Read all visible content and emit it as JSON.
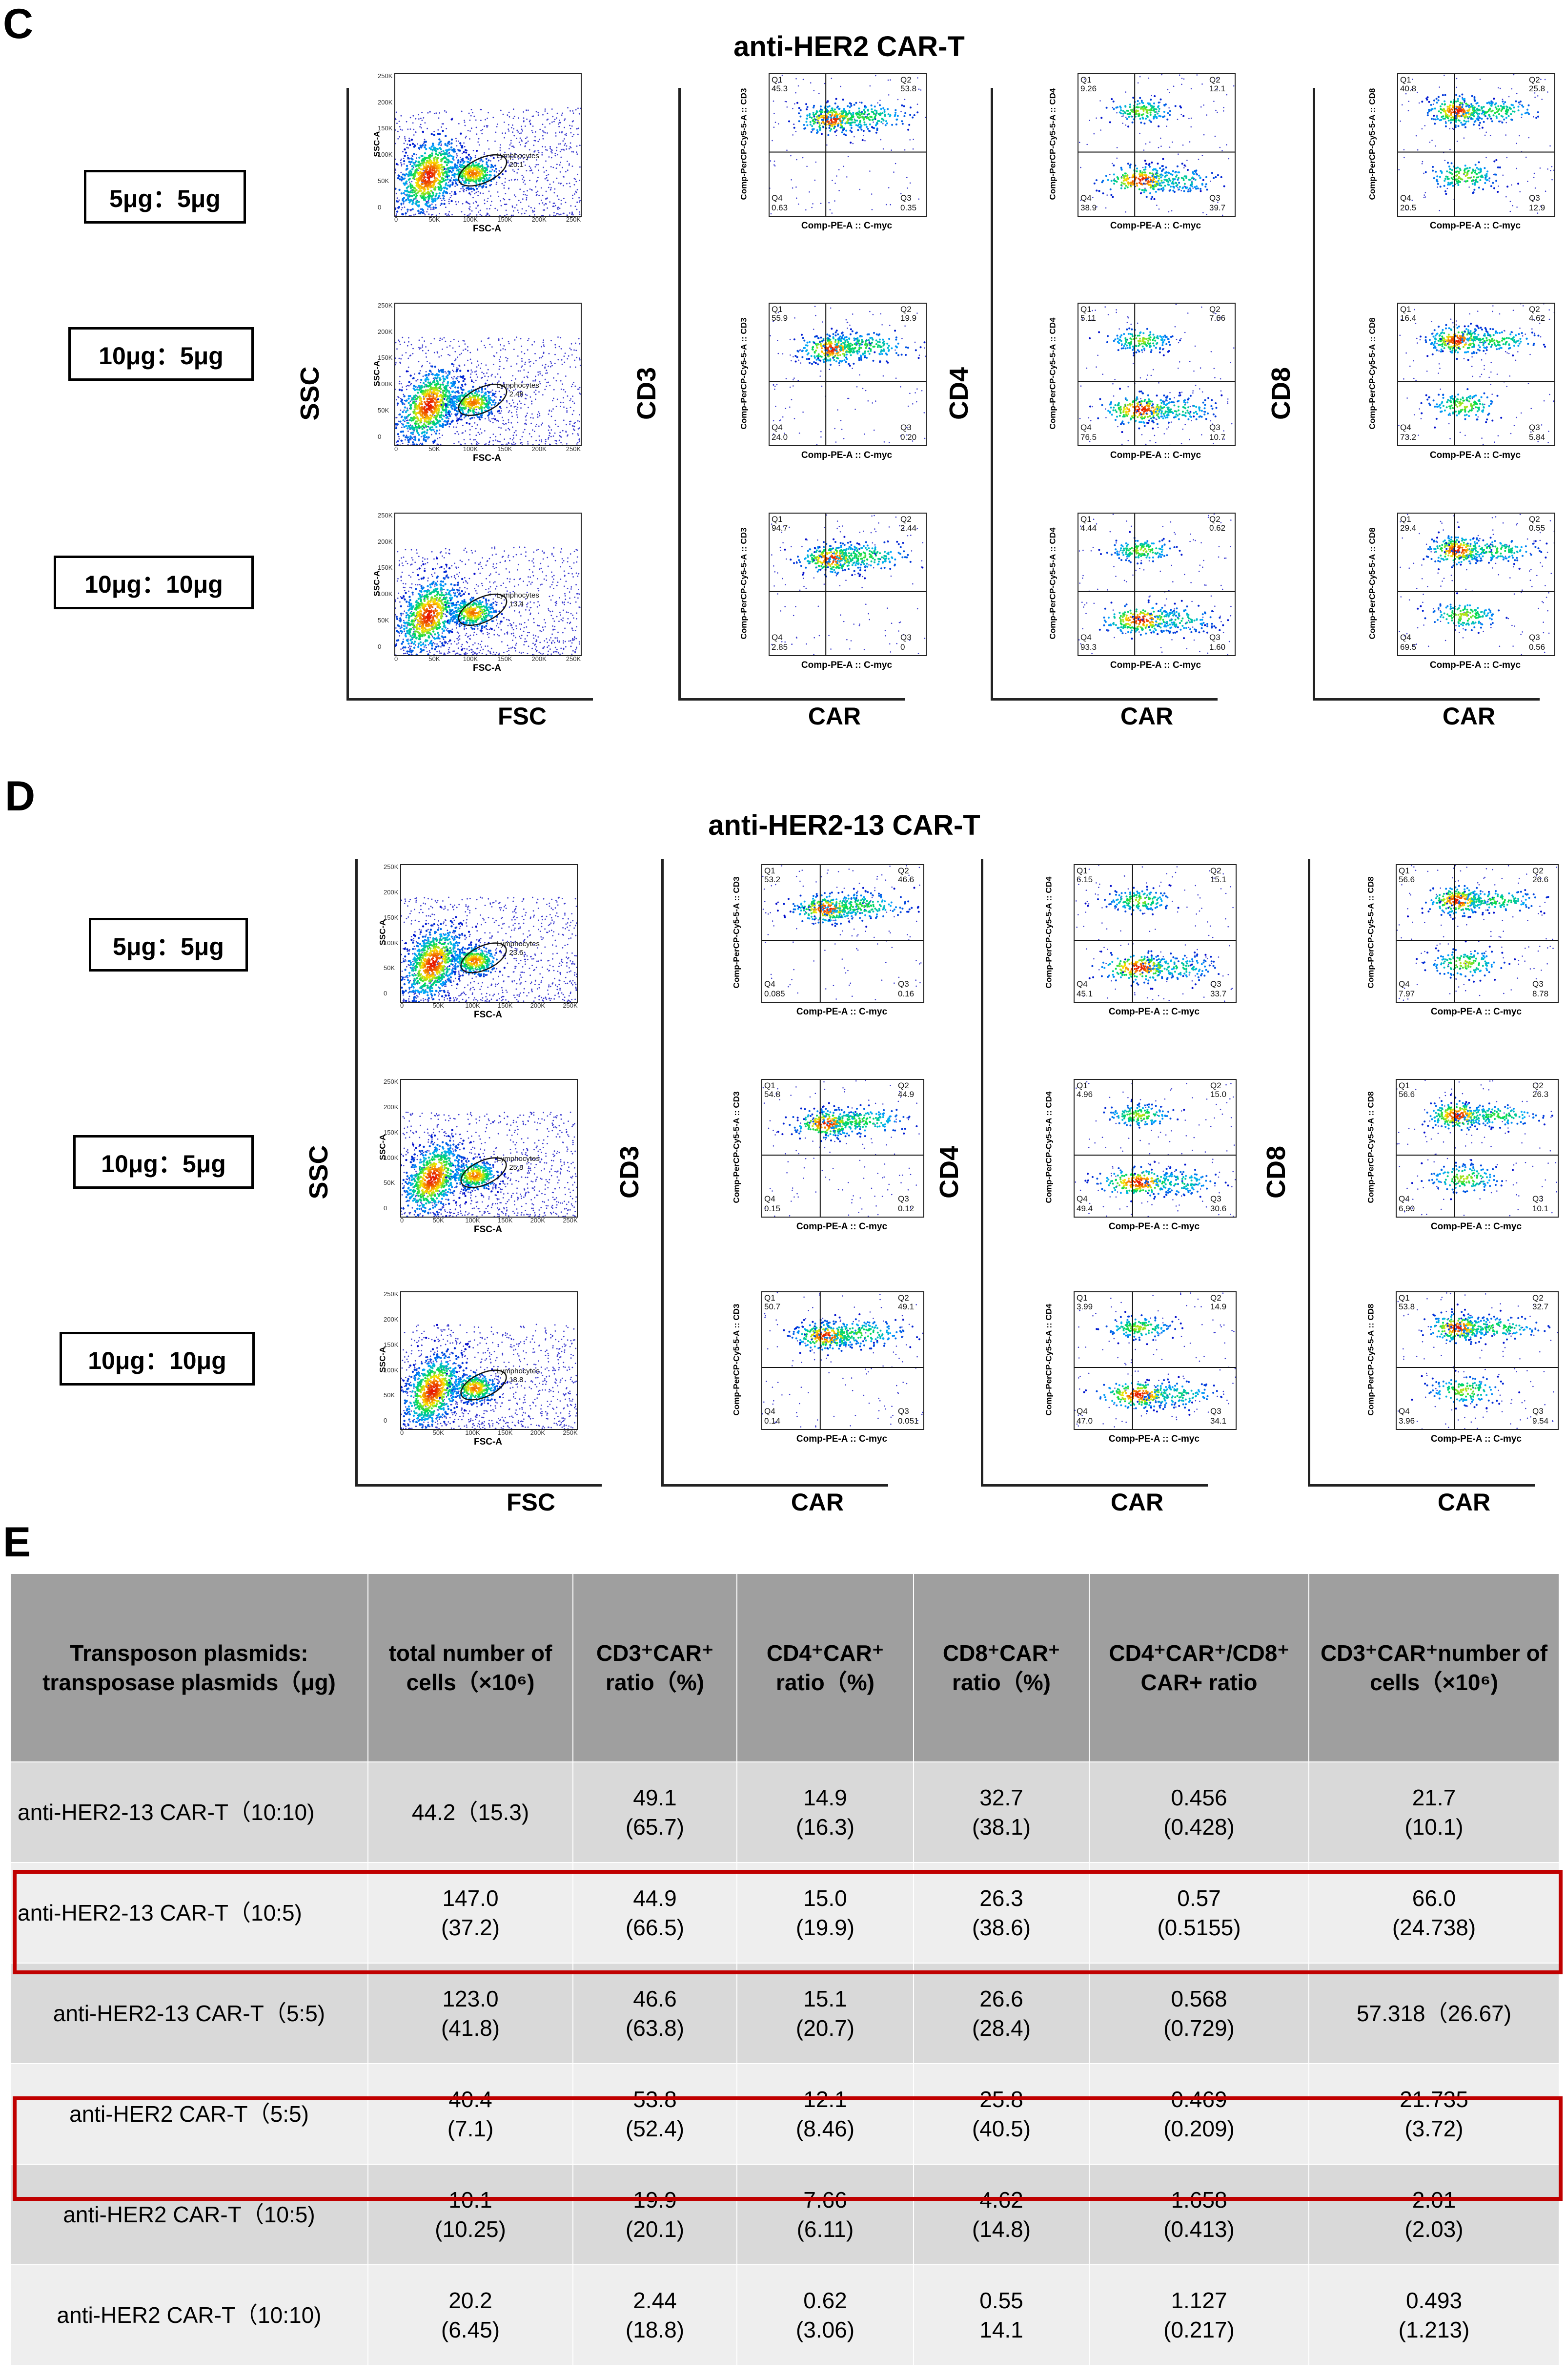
{
  "panels": {
    "c": {
      "letter": "C",
      "title": "anti-HER2 CAR-T",
      "ratios": [
        "5μg：5μg",
        "10μg：5μg",
        "10μg：10μg"
      ],
      "scatter": {
        "big_y": "SSC",
        "big_x": "FSC",
        "x_small": "FSC-A",
        "y_small": "SSC-A",
        "gate_label": "Lymphocytes",
        "gate_values": [
          "20.1",
          "2.48",
          "13.4"
        ],
        "y_ticks": [
          "250K",
          "200K",
          "150K",
          "100K",
          "50K",
          "0"
        ],
        "x_ticks": [
          "0",
          "50K",
          "100K",
          "150K",
          "200K",
          "250K"
        ]
      },
      "markers": [
        {
          "name": "CD3",
          "y_small": "Comp-PerCP-Cy5-5-A :: CD3",
          "x_small": "Comp-PE-A :: C-myc",
          "big_x": "CAR",
          "quads": [
            {
              "q1": "45.3",
              "q2": "53.8",
              "q3": "0.35",
              "q4": "0.63"
            },
            {
              "q1": "55.9",
              "q2": "19.9",
              "q3": "0.20",
              "q4": "24.0"
            },
            {
              "q1": "94.7",
              "q2": "2.44",
              "q3": "0",
              "q4": "2.85"
            }
          ]
        },
        {
          "name": "CD4",
          "y_small": "Comp-PerCP-Cy5-5-A :: CD4",
          "x_small": "Comp-PE-A :: C-myc",
          "big_x": "CAR",
          "quads": [
            {
              "q1": "9.26",
              "q2": "12.1",
              "q3": "39.7",
              "q4": "38.9"
            },
            {
              "q1": "5.11",
              "q2": "7.66",
              "q3": "10.7",
              "q4": "76.5"
            },
            {
              "q1": "4.44",
              "q2": "0.62",
              "q3": "1.60",
              "q4": "93.3"
            }
          ]
        },
        {
          "name": "CD8",
          "y_small": "Comp-PerCP-Cy5-5-A :: CD8",
          "x_small": "Comp-PE-A :: C-myc",
          "big_x": "CAR",
          "quads": [
            {
              "q1": "40.8",
              "q2": "25.8",
              "q3": "12.9",
              "q4": "20.5"
            },
            {
              "q1": "16.4",
              "q2": "4.62",
              "q3": "5.84",
              "q4": "73.2"
            },
            {
              "q1": "29.4",
              "q2": "0.55",
              "q3": "0.56",
              "q4": "69.5"
            }
          ]
        }
      ]
    },
    "d": {
      "letter": "D",
      "title": "anti-HER2-13 CAR-T",
      "ratios": [
        "5μg：5μg",
        "10μg：5μg",
        "10μg：10μg"
      ],
      "scatter": {
        "big_y": "SSC",
        "big_x": "FSC",
        "x_small": "FSC-A",
        "y_small": "SSC-A",
        "gate_label": "Lymphocytes",
        "gate_values": [
          "23.6",
          "25.8",
          "18.8"
        ],
        "y_ticks": [
          "250K",
          "200K",
          "150K",
          "100K",
          "50K",
          "0"
        ],
        "x_ticks": [
          "0",
          "50K",
          "100K",
          "150K",
          "200K",
          "250K"
        ]
      },
      "markers": [
        {
          "name": "CD3",
          "y_small": "Comp-PerCP-Cy5-5-A :: CD3",
          "x_small": "Comp-PE-A :: C-myc",
          "big_x": "CAR",
          "quads": [
            {
              "q1": "53.2",
              "q2": "46.6",
              "q3": "0.16",
              "q4": "0.085"
            },
            {
              "q1": "54.8",
              "q2": "44.9",
              "q3": "0.12",
              "q4": "0.15"
            },
            {
              "q1": "50.7",
              "q2": "49.1",
              "q3": "0.051",
              "q4": "0.14"
            }
          ]
        },
        {
          "name": "CD4",
          "y_small": "Comp-PerCP-Cy5-5-A :: CD4",
          "x_small": "Comp-PE-A :: C-myc",
          "big_x": "CAR",
          "quads": [
            {
              "q1": "6.15",
              "q2": "15.1",
              "q3": "33.7",
              "q4": "45.1"
            },
            {
              "q1": "4.96",
              "q2": "15.0",
              "q3": "30.6",
              "q4": "49.4"
            },
            {
              "q1": "3.99",
              "q2": "14.9",
              "q3": "34.1",
              "q4": "47.0"
            }
          ]
        },
        {
          "name": "CD8",
          "y_small": "Comp-PerCP-Cy5-5-A :: CD8",
          "x_small": "Comp-PE-A :: C-myc",
          "big_x": "CAR",
          "quads": [
            {
              "q1": "56.6",
              "q2": "26.6",
              "q3": "8.78",
              "q4": "7.97"
            },
            {
              "q1": "56.6",
              "q2": "26.3",
              "q3": "10.1",
              "q4": "6.90"
            },
            {
              "q1": "53.8",
              "q2": "32.7",
              "q3": "9.54",
              "q4": "3.96"
            }
          ]
        }
      ]
    },
    "e": {
      "letter": "E",
      "headers": [
        "Transposon plasmids: transposase plasmids（μg)",
        "total number of cells（×10⁶)",
        "CD3⁺CAR⁺ ratio（%)",
        "CD4⁺CAR⁺ ratio（%)",
        "CD8⁺CAR⁺ ratio（%)",
        "CD4⁺CAR⁺/CD8⁺ CAR+ ratio",
        "CD3⁺CAR⁺number of cells（×10⁶)"
      ],
      "rows": [
        [
          "anti-HER2-13 CAR-T（10:10)",
          "44.2（15.3)",
          "49.1\n(65.7)",
          "14.9\n(16.3)",
          "32.7\n(38.1)",
          "0.456\n(0.428)",
          "21.7\n(10.1)"
        ],
        [
          "anti-HER2-13 CAR-T（10:5)",
          "147.0\n(37.2)",
          "44.9\n(66.5)",
          "15.0\n(19.9)",
          "26.3\n(38.6)",
          "0.57\n(0.5155)",
          "66.0\n(24.738)"
        ],
        [
          "anti-HER2-13 CAR-T（5:5)",
          "123.0\n(41.8)",
          "46.6\n(63.8)",
          "15.1\n(20.7)",
          "26.6\n(28.4)",
          "0.568\n(0.729)",
          "57.318（26.67)"
        ],
        [
          "anti-HER2 CAR-T（5:5)",
          "40.4\n(7.1)",
          "53.8\n(52.4)",
          "12.1\n(8.46)",
          "25.8\n(40.5)",
          "0.469\n(0.209)",
          "21.735\n(3.72)"
        ],
        [
          "anti-HER2 CAR-T（10:5)",
          "10.1\n(10.25)",
          "19.9\n(20.1)",
          "7.66\n(6.11)",
          "4.62\n(14.8)",
          "1.658\n(0.413)",
          "2.01\n(2.03)"
        ],
        [
          "anti-HER2 CAR-T（10:10)",
          "20.2\n(6.45)",
          "2.44\n(18.8)",
          "0.62\n(3.06)",
          "0.55\n14.1",
          "1.127\n(0.217)",
          "0.493\n(1.213)"
        ]
      ],
      "highlight_color": "#c00000"
    }
  }
}
